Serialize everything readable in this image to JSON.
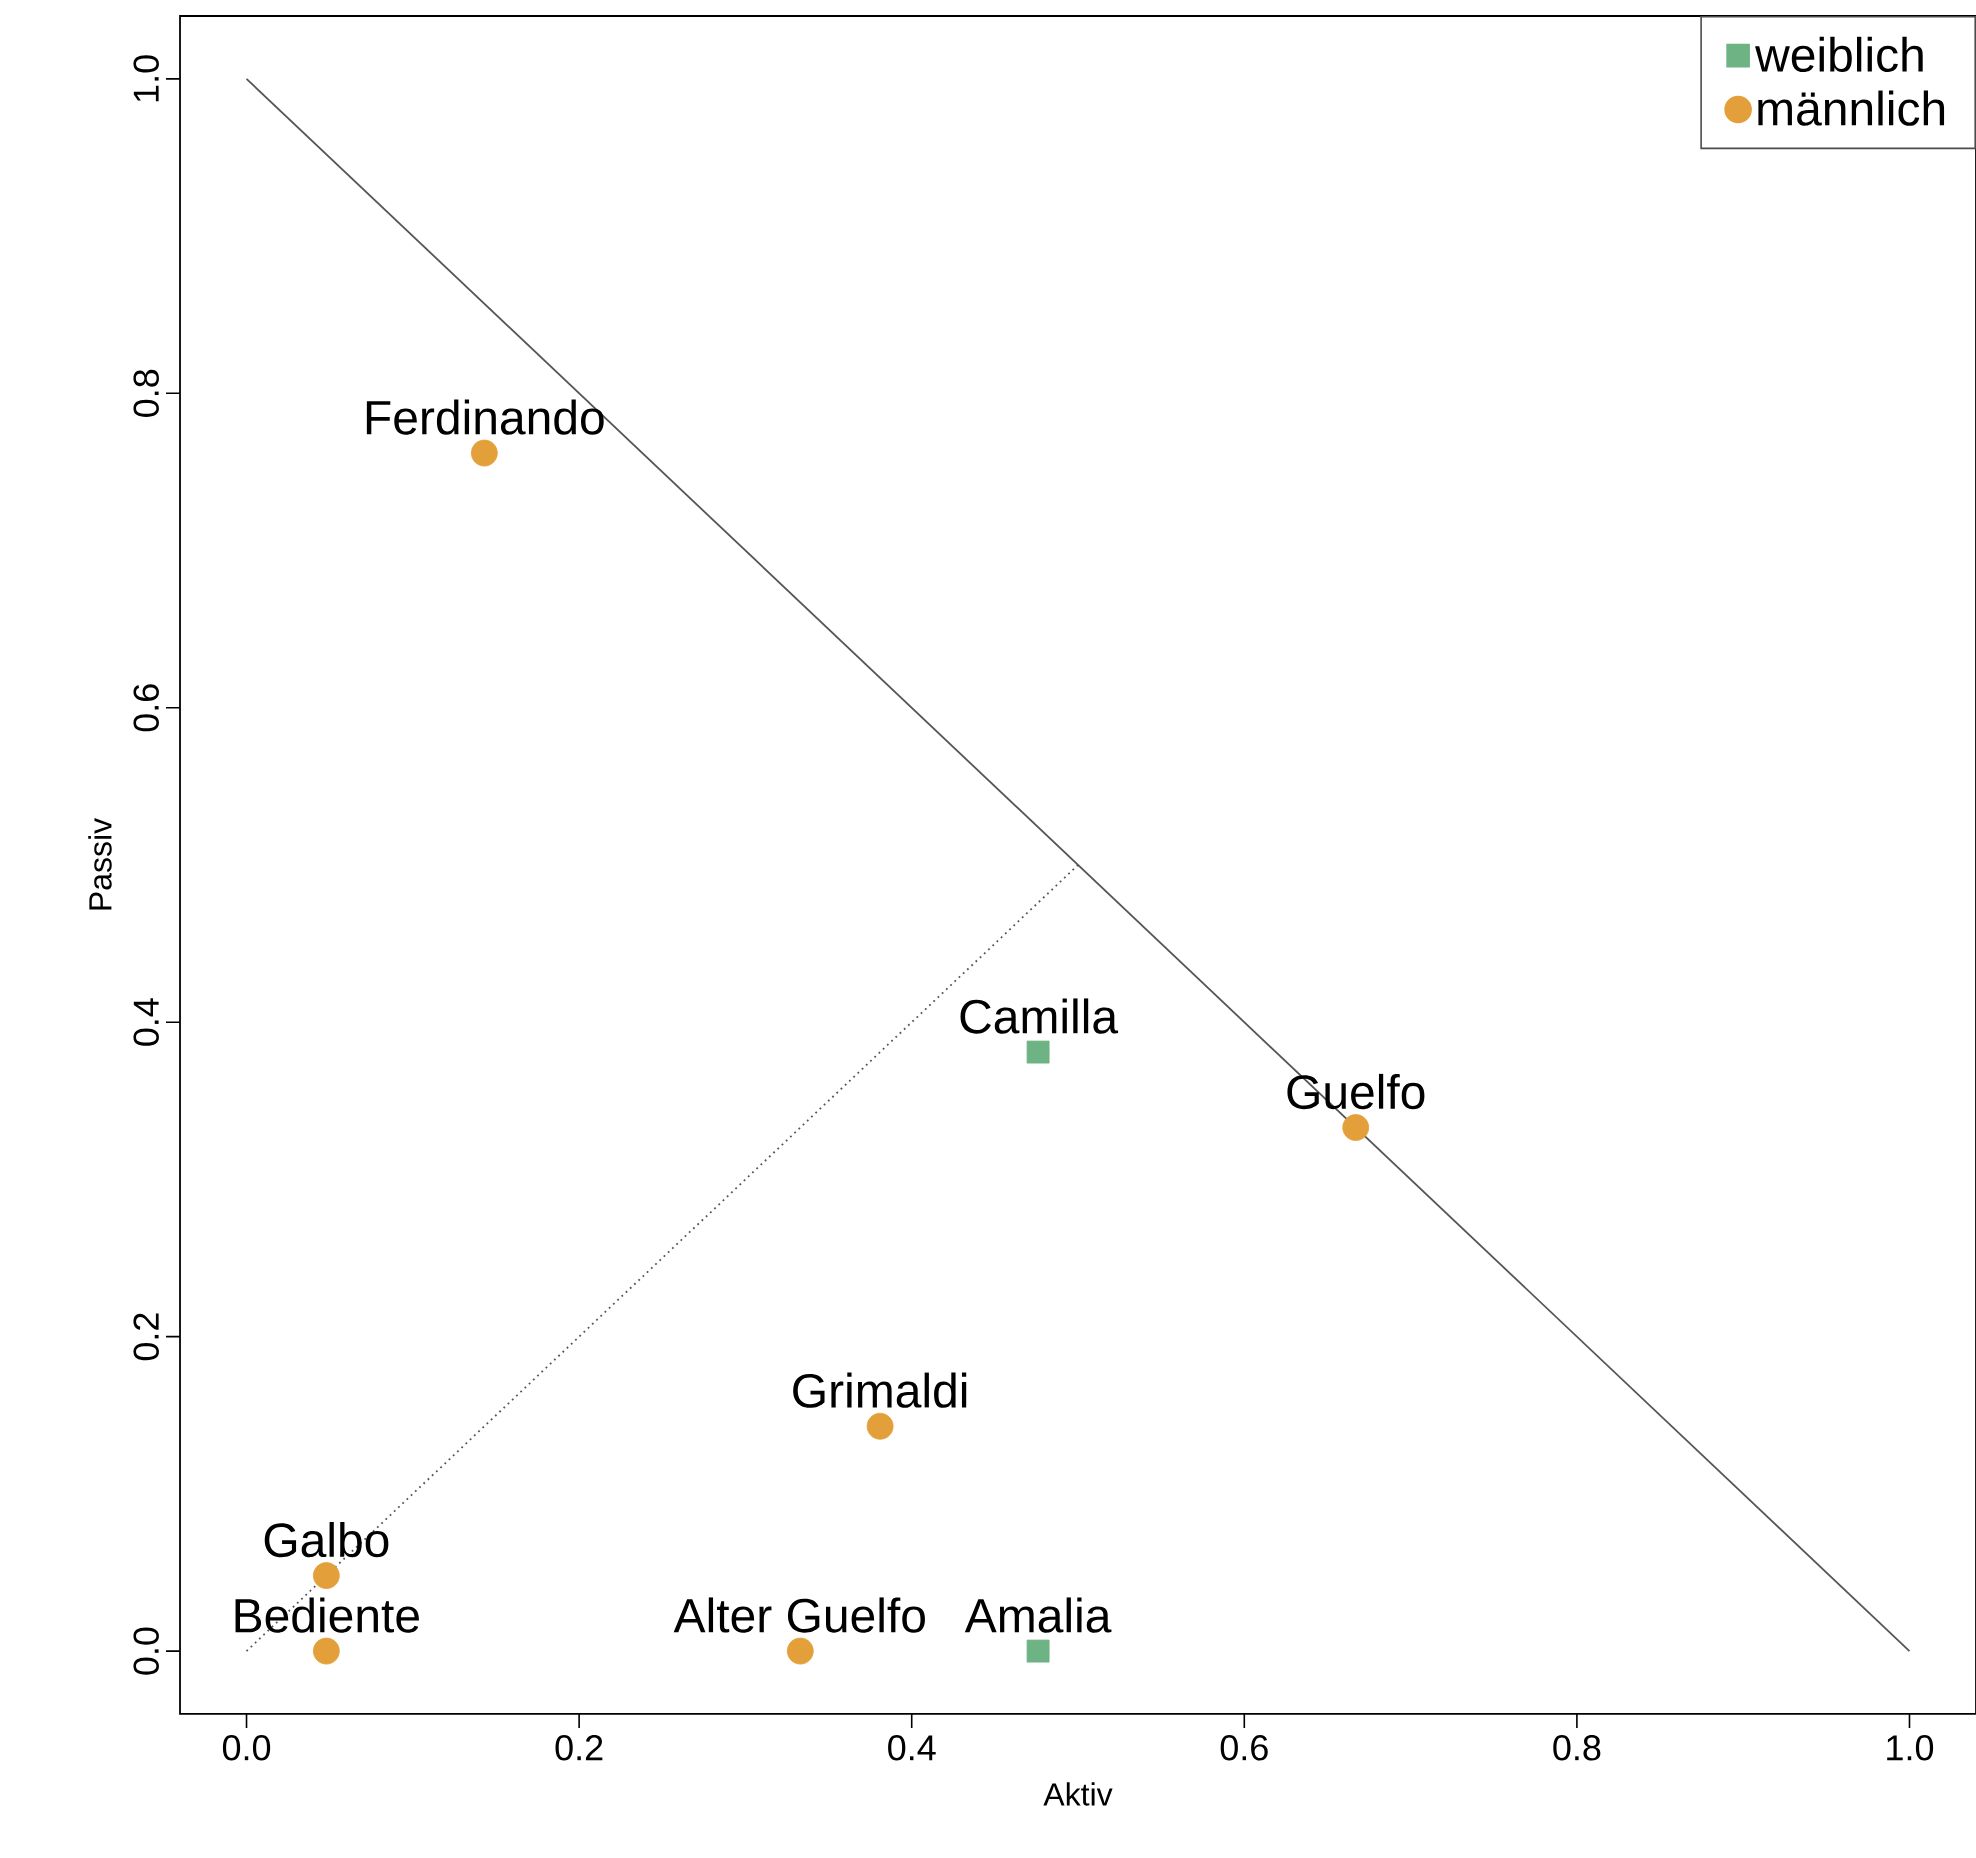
{
  "chart_data": {
    "type": "scatter",
    "xlabel": "Aktiv",
    "ylabel": "Passiv",
    "xlim": [
      -0.04,
      1.04
    ],
    "ylim": [
      -0.04,
      1.04
    ],
    "xticks": [
      {
        "value": 0,
        "label": "0.0"
      },
      0.2,
      0.4,
      0.6,
      0.8,
      {
        "value": 1,
        "label": "1.0"
      }
    ],
    "yticks": [
      {
        "value": 0,
        "label": "0.0"
      },
      0.2,
      0.4,
      0.6,
      0.8,
      {
        "value": 1,
        "label": "1.0"
      }
    ],
    "legend": "top right",
    "grid": false,
    "series": [
      {
        "name": "weiblich",
        "marker": "square",
        "color": "#6db383",
        "x": [
          0.476,
          0.476
        ],
        "values": [
          0.381,
          0
        ]
      },
      {
        "name": "männlich",
        "marker": "circle",
        "color": "#e3a03a",
        "x": [
          0.143,
          0.667,
          0.381,
          0.048,
          0.048,
          0.333
        ],
        "values": [
          0.762,
          0.333,
          0.143,
          0.048,
          0,
          0
        ]
      },
      {
        "type": "line",
        "line_style": "solid",
        "color": "#555555",
        "x": [
          0,
          1
        ],
        "values": [
          1,
          0
        ]
      },
      {
        "type": "line",
        "line_style": "dotted",
        "color": "#555555",
        "x": [
          0,
          0.5
        ],
        "values": [
          0,
          0.5
        ]
      }
    ],
    "annotations": [
      {
        "text": "Ferdinando",
        "x": 0.143,
        "y": 0.762
      },
      {
        "text": "Camilla",
        "x": 0.476,
        "y": 0.381
      },
      {
        "text": "Guelfo",
        "x": 0.667,
        "y": 0.333
      },
      {
        "text": "Grimaldi",
        "x": 0.381,
        "y": 0.143
      },
      {
        "text": "Galbo",
        "x": 0.048,
        "y": 0.048
      },
      {
        "text": "Bediente",
        "x": 0.048,
        "y": 0
      },
      {
        "text": "Alter Guelfo",
        "x": 0.333,
        "y": 0
      },
      {
        "text": "Amalia",
        "x": 0.476,
        "y": 0
      }
    ]
  }
}
